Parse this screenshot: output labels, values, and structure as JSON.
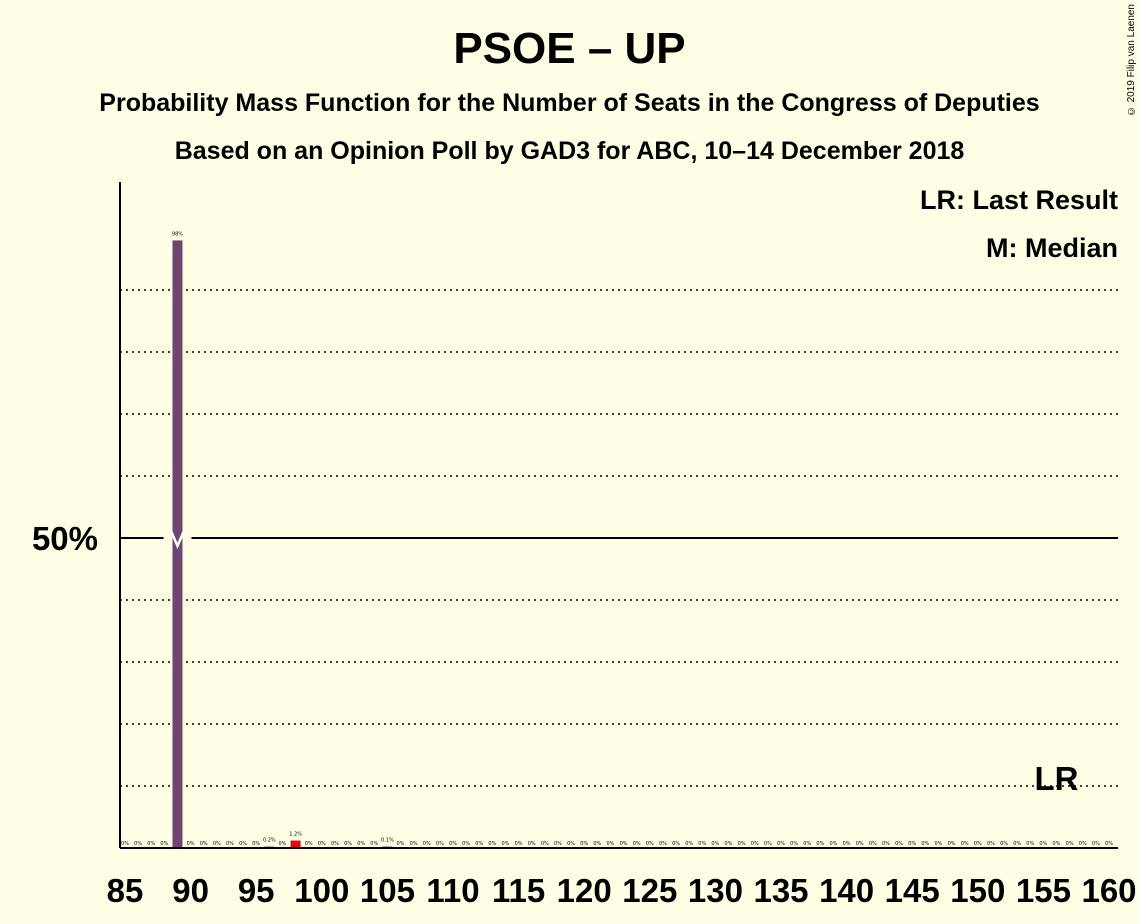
{
  "title": "PSOE – UP",
  "subtitle": "Probability Mass Function for the Number of Seats in the Congress of Deputies",
  "subtitle2": "Based on an Opinion Poll by GAD3 for ABC, 10–14 December 2018",
  "copyright": "© 2019 Filip van Laenen",
  "legend": {
    "last_result": "LR: Last Result",
    "median": "M: Median"
  },
  "marker_labels": {
    "fifty": "50%",
    "last_result": "LR"
  },
  "colors": {
    "background": "#FFFEE4",
    "bar": "#6E4672",
    "last_result_bar": "#E30613",
    "text": "#000000"
  },
  "chart_data": {
    "type": "bar",
    "xlabel": "",
    "ylabel": "",
    "xlim": [
      85,
      160
    ],
    "ylim": [
      0,
      100
    ],
    "x_ticks": [
      85,
      90,
      95,
      100,
      105,
      110,
      115,
      120,
      125,
      130,
      135,
      140,
      145,
      150,
      155,
      160
    ],
    "y_ticks": [
      50
    ],
    "grid": "dotted horizontal every 10%",
    "median": 89,
    "last_result": 156,
    "seats": [
      85,
      86,
      87,
      88,
      89,
      90,
      91,
      92,
      93,
      94,
      95,
      96,
      97,
      98,
      99,
      100,
      101,
      102,
      103,
      104,
      105,
      106,
      107,
      108,
      109,
      110,
      111,
      112,
      113,
      114,
      115,
      116,
      117,
      118,
      119,
      120,
      121,
      122,
      123,
      124,
      125,
      126,
      127,
      128,
      129,
      130,
      131,
      132,
      133,
      134,
      135,
      136,
      137,
      138,
      139,
      140,
      141,
      142,
      143,
      144,
      145,
      146,
      147,
      148,
      149,
      150,
      151,
      152,
      153,
      154,
      155,
      156,
      157,
      158,
      159,
      160
    ],
    "values": [
      0,
      0,
      0,
      0,
      98,
      0,
      0,
      0,
      0,
      0,
      0,
      0.2,
      0,
      1.2,
      0,
      0,
      0,
      0,
      0,
      0,
      0.1,
      0,
      0,
      0,
      0,
      0,
      0,
      0,
      0,
      0,
      0,
      0,
      0,
      0,
      0,
      0,
      0,
      0,
      0,
      0,
      0,
      0,
      0,
      0,
      0,
      0,
      0,
      0,
      0,
      0,
      0,
      0,
      0,
      0,
      0,
      0,
      0,
      0,
      0,
      0,
      0,
      0,
      0,
      0,
      0,
      0,
      0,
      0,
      0,
      0,
      0,
      0,
      0,
      0,
      0,
      0
    ],
    "value_labels": [
      "0%",
      "0%",
      "0%",
      "0%",
      "98%",
      "0%",
      "0%",
      "0%",
      "0%",
      "0%",
      "0%",
      "0.2%",
      "0%",
      "1.2%",
      "0%",
      "0%",
      "0%",
      "0%",
      "0%",
      "0%",
      "0.1%",
      "0%",
      "0%",
      "0%",
      "0%",
      "0%",
      "0%",
      "0%",
      "0%",
      "0%",
      "0%",
      "0%",
      "0%",
      "0%",
      "0%",
      "0%",
      "0%",
      "0%",
      "0%",
      "0%",
      "0%",
      "0%",
      "0%",
      "0%",
      "0%",
      "0%",
      "0%",
      "0%",
      "0%",
      "0%",
      "0%",
      "0%",
      "0%",
      "0%",
      "0%",
      "0%",
      "0%",
      "0%",
      "0%",
      "0%",
      "0%",
      "0%",
      "0%",
      "0%",
      "0%",
      "0%",
      "0%",
      "0%",
      "0%",
      "0%",
      "0%",
      "0%",
      "0%",
      "0%",
      "0%",
      "0%"
    ],
    "highlight_seat": 98
  }
}
